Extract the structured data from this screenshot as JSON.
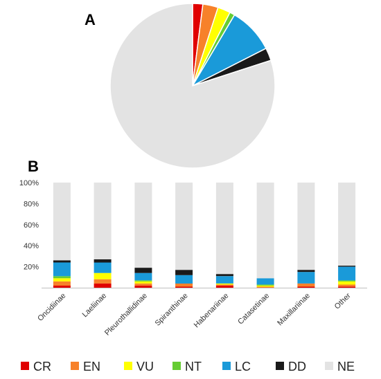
{
  "colors": {
    "CR": "#e00000",
    "EN": "#f7812a",
    "VU": "#ffff00",
    "NT": "#66cc33",
    "LC": "#1a9ad9",
    "DD": "#1a1a1a",
    "NE": "#e3e3e3"
  },
  "chart_data": [
    {
      "type": "pie",
      "panel_label": "A",
      "slices": [
        {
          "name": "CR",
          "value": 2.0
        },
        {
          "name": "EN",
          "value": 3.0
        },
        {
          "name": "VU",
          "value": 2.5
        },
        {
          "name": "NT",
          "value": 1.0
        },
        {
          "name": "LC",
          "value": 9.0
        },
        {
          "name": "DD",
          "value": 2.5
        },
        {
          "name": "NE",
          "value": 80.0
        }
      ]
    },
    {
      "type": "bar",
      "stacked": true,
      "panel_label": "B",
      "categories": [
        "Oncidiinae",
        "Laeliinae",
        "Pleurothallidinae",
        "Spiranthinae",
        "Habenariinae",
        "Catasetinae",
        "Maxillariinae",
        "Other"
      ],
      "ylim": [
        0,
        100
      ],
      "yticks": [
        "",
        "20%",
        "40%",
        "60%",
        "80%",
        "100%"
      ],
      "series": [
        {
          "name": "CR",
          "values": [
            2,
            4,
            2,
            1,
            2,
            0,
            1,
            1
          ]
        },
        {
          "name": "EN",
          "values": [
            4,
            4,
            2,
            3,
            1,
            1,
            3,
            2
          ]
        },
        {
          "name": "VU",
          "values": [
            3,
            6,
            2,
            0,
            1,
            1,
            0,
            3
          ]
        },
        {
          "name": "NT",
          "values": [
            2,
            0,
            1,
            0,
            0,
            1,
            0,
            1
          ]
        },
        {
          "name": "LC",
          "values": [
            13,
            10,
            7,
            8,
            7,
            6,
            11,
            13
          ]
        },
        {
          "name": "DD",
          "values": [
            2,
            3,
            5,
            5,
            2,
            0,
            2,
            1
          ]
        },
        {
          "name": "NE",
          "values": [
            74,
            73,
            81,
            83,
            87,
            91,
            83,
            79
          ]
        }
      ],
      "legend": [
        "CR",
        "EN",
        "VU",
        "NT",
        "LC",
        "DD",
        "NE"
      ],
      "legend_position": "bottom",
      "grid": false
    }
  ]
}
